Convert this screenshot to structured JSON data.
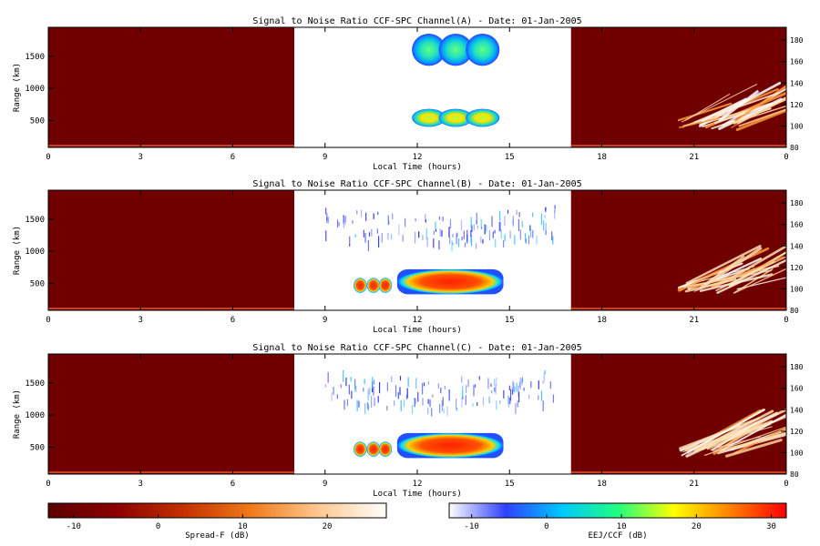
{
  "chart_data": [
    {
      "type": "heatmap",
      "title": "Signal to Noise Ratio CCF-SPC Channel(A) - Date: 01-Jan-2005",
      "xlabel": "Local Time (hours)",
      "ylabel": "Range (km)",
      "xlim": [
        0,
        24
      ],
      "ylim": [
        80,
        1950
      ],
      "y2lim": [
        80,
        192
      ],
      "xticks": [
        "0",
        "3",
        "6",
        "9",
        "12",
        "15",
        "18",
        "21",
        "0"
      ],
      "yticks": [
        500,
        1000,
        1500
      ],
      "y2ticks": [
        80,
        100,
        120,
        140,
        160,
        180
      ],
      "regions": [
        {
          "name": "Spread-F",
          "x": [
            0,
            8
          ],
          "colormap": "spread-f"
        },
        {
          "name": "EEJ/CCF",
          "x": [
            8,
            17
          ],
          "colormap": "eej-ccf"
        },
        {
          "name": "Spread-F",
          "x": [
            17,
            24
          ],
          "colormap": "spread-f"
        }
      ],
      "features": [
        {
          "region": "EEJ/CCF",
          "x": [
            12,
            14.5
          ],
          "y": [
            1350,
            1850
          ],
          "snr_db": 12
        },
        {
          "region": "EEJ/CCF",
          "x": [
            12,
            14.5
          ],
          "y": [
            400,
            680
          ],
          "snr_db": 15
        },
        {
          "region": "Spread-F",
          "x": [
            20.5,
            24
          ],
          "y2": [
            96,
            140
          ],
          "snr_db": 20
        }
      ]
    },
    {
      "type": "heatmap",
      "title": "Signal to Noise Ratio CCF-SPC Channel(B) - Date: 01-Jan-2005",
      "xlabel": "Local Time (hours)",
      "ylabel": "Range (km)",
      "xlim": [
        0,
        24
      ],
      "ylim": [
        80,
        1950
      ],
      "y2lim": [
        80,
        192
      ],
      "xticks": [
        "0",
        "3",
        "6",
        "9",
        "12",
        "15",
        "18",
        "21",
        "0"
      ],
      "yticks": [
        500,
        1000,
        1500
      ],
      "y2ticks": [
        80,
        100,
        120,
        140,
        160,
        180
      ],
      "regions": [
        {
          "name": "Spread-F",
          "x": [
            0,
            8
          ],
          "colormap": "spread-f"
        },
        {
          "name": "EEJ/CCF",
          "x": [
            8,
            17
          ],
          "colormap": "eej-ccf"
        },
        {
          "name": "Spread-F",
          "x": [
            17,
            24
          ],
          "colormap": "spread-f"
        }
      ],
      "features": [
        {
          "region": "EEJ/CCF",
          "x": [
            9,
            16.5
          ],
          "y": [
            1100,
            1600
          ],
          "snr_db": -5
        },
        {
          "region": "EEJ/CCF",
          "x": [
            10,
            14.8
          ],
          "y": [
            330,
            720
          ],
          "snr_db": 30
        },
        {
          "region": "Spread-F",
          "x": [
            20.5,
            24
          ],
          "y2": [
            96,
            140
          ],
          "snr_db": 20
        }
      ]
    },
    {
      "type": "heatmap",
      "title": "Signal to Noise Ratio CCF-SPC Channel(C) - Date: 01-Jan-2005",
      "xlabel": "Local Time (hours)",
      "ylabel": "Range (km)",
      "xlim": [
        0,
        24
      ],
      "ylim": [
        80,
        1950
      ],
      "y2lim": [
        80,
        192
      ],
      "xticks": [
        "0",
        "3",
        "6",
        "9",
        "12",
        "15",
        "18",
        "21",
        "0"
      ],
      "yticks": [
        500,
        1000,
        1500
      ],
      "y2ticks": [
        80,
        100,
        120,
        140,
        160,
        180
      ],
      "regions": [
        {
          "name": "Spread-F",
          "x": [
            0,
            8
          ],
          "colormap": "spread-f"
        },
        {
          "name": "EEJ/CCF",
          "x": [
            8,
            17
          ],
          "colormap": "eej-ccf"
        },
        {
          "name": "Spread-F",
          "x": [
            17,
            24
          ],
          "colormap": "spread-f"
        }
      ],
      "features": [
        {
          "region": "EEJ/CCF",
          "x": [
            9,
            16.5
          ],
          "y": [
            1100,
            1600
          ],
          "snr_db": -5
        },
        {
          "region": "EEJ/CCF",
          "x": [
            10,
            14.8
          ],
          "y": [
            330,
            720
          ],
          "snr_db": 30
        },
        {
          "region": "Spread-F",
          "x": [
            20.5,
            24
          ],
          "y2": [
            96,
            140
          ],
          "snr_db": 20
        }
      ]
    }
  ],
  "colorbars": [
    {
      "label": "Spread-F (dB)",
      "range": [
        -13,
        27
      ],
      "ticks": [
        "-10",
        "0",
        "10",
        "20"
      ],
      "colors": [
        "#5c0000",
        "#8b0000",
        "#c43000",
        "#f07a1a",
        "#ffc890",
        "#ffffff"
      ]
    },
    {
      "label": "EEJ/CCF (dB)",
      "range": [
        -13,
        32
      ],
      "ticks": [
        "-10",
        "0",
        "10",
        "20",
        "30"
      ],
      "colors": [
        "#ffffff",
        "#3040ff",
        "#00c8ff",
        "#20ff80",
        "#ffff00",
        "#ff8000",
        "#ff0000"
      ]
    }
  ]
}
